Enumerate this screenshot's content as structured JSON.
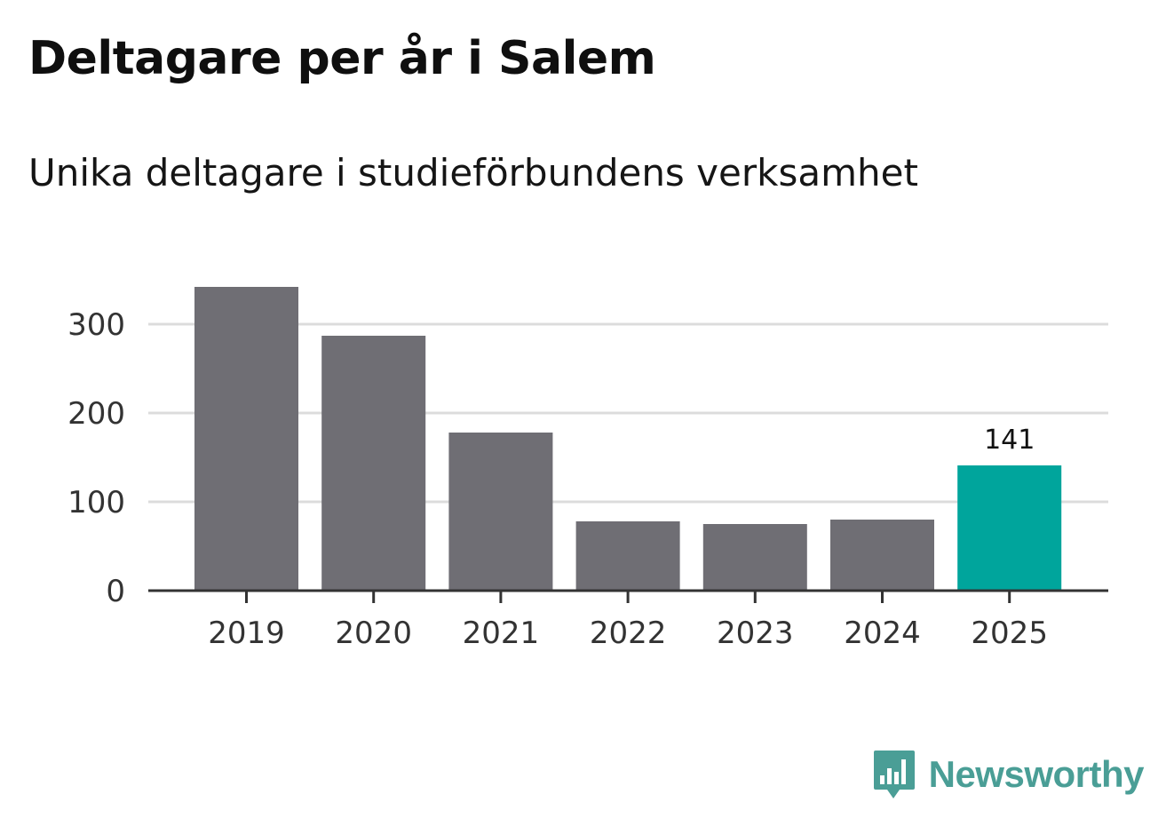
{
  "title": "Deltagare per år i Salem",
  "subtitle": "Unika deltagare i studieförbundens verksamhet",
  "brand": {
    "name": "Newsworthy",
    "icon": "newsworthy-logo-icon",
    "color": "#4a9e96"
  },
  "colors": {
    "bar": "#6f6e74",
    "highlight": "#00a59c",
    "grid": "#dcdcdc",
    "axis": "#333333"
  },
  "chart_data": {
    "type": "bar",
    "title": "Deltagare per år i Salem",
    "subtitle": "Unika deltagare i studieförbundens verksamhet",
    "xlabel": "",
    "ylabel": "",
    "categories": [
      "2019",
      "2020",
      "2021",
      "2022",
      "2023",
      "2024",
      "2025"
    ],
    "values": [
      342,
      287,
      178,
      78,
      75,
      80,
      141
    ],
    "highlight_index": 6,
    "data_labels": [
      {
        "index": 6,
        "text": "141"
      }
    ],
    "y_ticks": [
      0,
      100,
      200,
      300
    ],
    "y_tick_labels": [
      "0",
      "100",
      "200",
      "300"
    ],
    "ylim": [
      0,
      350
    ],
    "grid": true,
    "legend": "none"
  }
}
